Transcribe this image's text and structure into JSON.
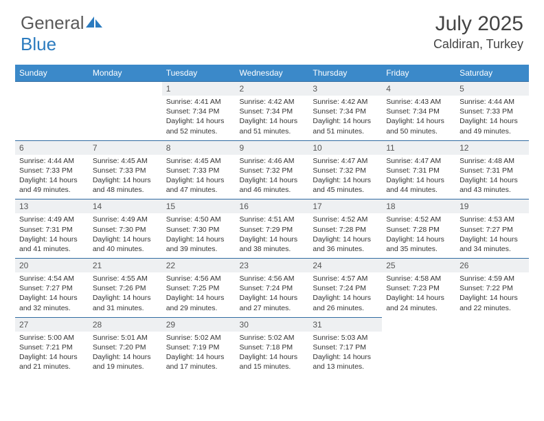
{
  "brand": {
    "text_a": "General",
    "text_b": "Blue"
  },
  "title": "July 2025",
  "location": "Caldiran, Turkey",
  "colors": {
    "header_bg": "#3b89c9",
    "header_border": "#2f6aa0",
    "daynum_bg": "#eef0f2",
    "text": "#333333",
    "brand_gray": "#5a5a5a",
    "brand_blue": "#2b7bbf"
  },
  "day_headers": [
    "Sunday",
    "Monday",
    "Tuesday",
    "Wednesday",
    "Thursday",
    "Friday",
    "Saturday"
  ],
  "weeks": [
    [
      null,
      null,
      {
        "n": "1",
        "sr": "4:41 AM",
        "ss": "7:34 PM",
        "dl": "14 hours and 52 minutes."
      },
      {
        "n": "2",
        "sr": "4:42 AM",
        "ss": "7:34 PM",
        "dl": "14 hours and 51 minutes."
      },
      {
        "n": "3",
        "sr": "4:42 AM",
        "ss": "7:34 PM",
        "dl": "14 hours and 51 minutes."
      },
      {
        "n": "4",
        "sr": "4:43 AM",
        "ss": "7:34 PM",
        "dl": "14 hours and 50 minutes."
      },
      {
        "n": "5",
        "sr": "4:44 AM",
        "ss": "7:33 PM",
        "dl": "14 hours and 49 minutes."
      }
    ],
    [
      {
        "n": "6",
        "sr": "4:44 AM",
        "ss": "7:33 PM",
        "dl": "14 hours and 49 minutes."
      },
      {
        "n": "7",
        "sr": "4:45 AM",
        "ss": "7:33 PM",
        "dl": "14 hours and 48 minutes."
      },
      {
        "n": "8",
        "sr": "4:45 AM",
        "ss": "7:33 PM",
        "dl": "14 hours and 47 minutes."
      },
      {
        "n": "9",
        "sr": "4:46 AM",
        "ss": "7:32 PM",
        "dl": "14 hours and 46 minutes."
      },
      {
        "n": "10",
        "sr": "4:47 AM",
        "ss": "7:32 PM",
        "dl": "14 hours and 45 minutes."
      },
      {
        "n": "11",
        "sr": "4:47 AM",
        "ss": "7:31 PM",
        "dl": "14 hours and 44 minutes."
      },
      {
        "n": "12",
        "sr": "4:48 AM",
        "ss": "7:31 PM",
        "dl": "14 hours and 43 minutes."
      }
    ],
    [
      {
        "n": "13",
        "sr": "4:49 AM",
        "ss": "7:31 PM",
        "dl": "14 hours and 41 minutes."
      },
      {
        "n": "14",
        "sr": "4:49 AM",
        "ss": "7:30 PM",
        "dl": "14 hours and 40 minutes."
      },
      {
        "n": "15",
        "sr": "4:50 AM",
        "ss": "7:30 PM",
        "dl": "14 hours and 39 minutes."
      },
      {
        "n": "16",
        "sr": "4:51 AM",
        "ss": "7:29 PM",
        "dl": "14 hours and 38 minutes."
      },
      {
        "n": "17",
        "sr": "4:52 AM",
        "ss": "7:28 PM",
        "dl": "14 hours and 36 minutes."
      },
      {
        "n": "18",
        "sr": "4:52 AM",
        "ss": "7:28 PM",
        "dl": "14 hours and 35 minutes."
      },
      {
        "n": "19",
        "sr": "4:53 AM",
        "ss": "7:27 PM",
        "dl": "14 hours and 34 minutes."
      }
    ],
    [
      {
        "n": "20",
        "sr": "4:54 AM",
        "ss": "7:27 PM",
        "dl": "14 hours and 32 minutes."
      },
      {
        "n": "21",
        "sr": "4:55 AM",
        "ss": "7:26 PM",
        "dl": "14 hours and 31 minutes."
      },
      {
        "n": "22",
        "sr": "4:56 AM",
        "ss": "7:25 PM",
        "dl": "14 hours and 29 minutes."
      },
      {
        "n": "23",
        "sr": "4:56 AM",
        "ss": "7:24 PM",
        "dl": "14 hours and 27 minutes."
      },
      {
        "n": "24",
        "sr": "4:57 AM",
        "ss": "7:24 PM",
        "dl": "14 hours and 26 minutes."
      },
      {
        "n": "25",
        "sr": "4:58 AM",
        "ss": "7:23 PM",
        "dl": "14 hours and 24 minutes."
      },
      {
        "n": "26",
        "sr": "4:59 AM",
        "ss": "7:22 PM",
        "dl": "14 hours and 22 minutes."
      }
    ],
    [
      {
        "n": "27",
        "sr": "5:00 AM",
        "ss": "7:21 PM",
        "dl": "14 hours and 21 minutes."
      },
      {
        "n": "28",
        "sr": "5:01 AM",
        "ss": "7:20 PM",
        "dl": "14 hours and 19 minutes."
      },
      {
        "n": "29",
        "sr": "5:02 AM",
        "ss": "7:19 PM",
        "dl": "14 hours and 17 minutes."
      },
      {
        "n": "30",
        "sr": "5:02 AM",
        "ss": "7:18 PM",
        "dl": "14 hours and 15 minutes."
      },
      {
        "n": "31",
        "sr": "5:03 AM",
        "ss": "7:17 PM",
        "dl": "14 hours and 13 minutes."
      },
      null,
      null
    ]
  ],
  "labels": {
    "sunrise": "Sunrise:",
    "sunset": "Sunset:",
    "daylight": "Daylight:"
  }
}
